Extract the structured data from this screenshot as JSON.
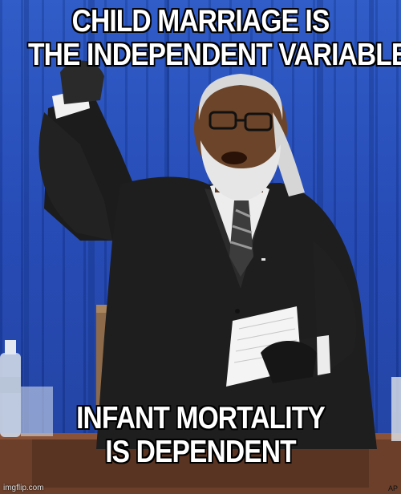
{
  "meme": {
    "top_caption": [
      "CHILD MARRIAGE IS",
      "THE INDEPENDENT VARIABLE"
    ],
    "bottom_caption": [
      "INFANT MORTALITY",
      "IS DEPENDENT"
    ],
    "watermark": "imgflip.com",
    "photo_credit": "AP"
  },
  "colors": {
    "curtain": "#2046b4",
    "caption_text": "#ffffff",
    "caption_outline": "#000000",
    "suit": "#1e1e1e"
  }
}
